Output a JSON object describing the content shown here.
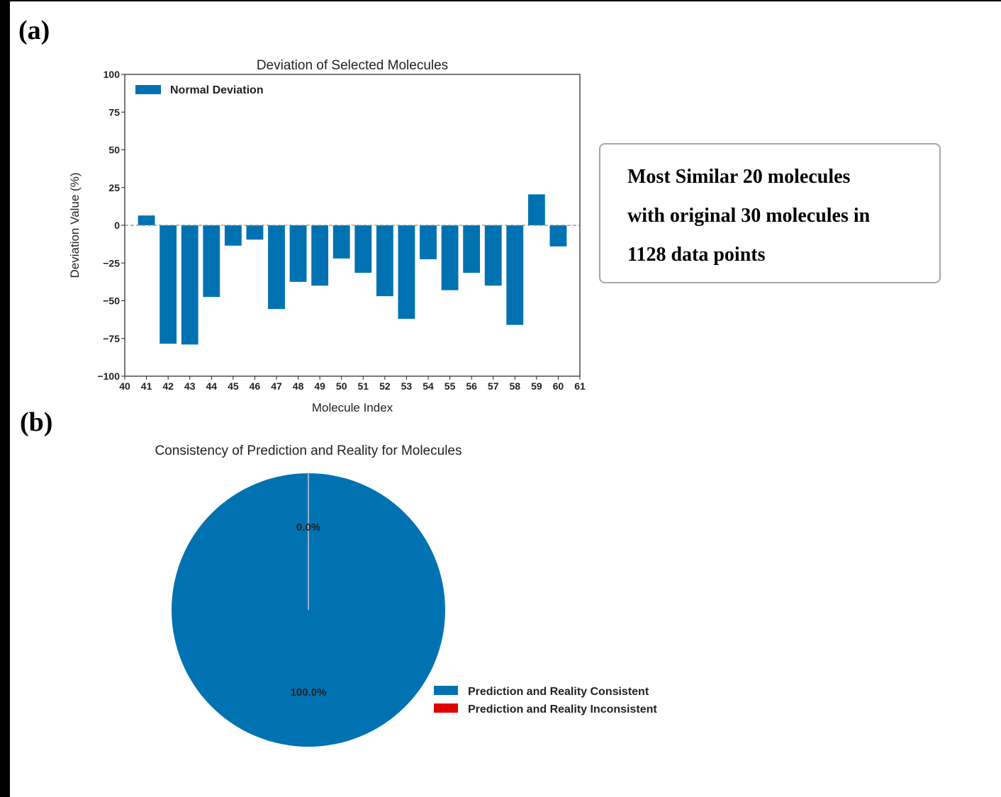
{
  "panels": {
    "a_label": "(a)",
    "b_label": "(b)"
  },
  "note": {
    "lines": [
      "Most Similar 20 molecules",
      "with original 30 molecules in",
      "1128 data points"
    ]
  },
  "chart_data": [
    {
      "type": "bar",
      "title": "Deviation of Selected Molecules",
      "xlabel": "Molecule Index",
      "ylabel": "Deviation Value (%)",
      "xlim": [
        40,
        61
      ],
      "ylim": [
        -100,
        100
      ],
      "xticks": [
        40,
        41,
        42,
        43,
        44,
        45,
        46,
        47,
        48,
        49,
        50,
        51,
        52,
        53,
        54,
        55,
        56,
        57,
        58,
        59,
        60,
        61
      ],
      "yticks": [
        100,
        75,
        50,
        25,
        0,
        -25,
        -50,
        -75,
        -100
      ],
      "ytick_labels": [
        "100",
        "75",
        "50",
        "25",
        "0",
        "−25",
        "−50",
        "−75",
        "−100"
      ],
      "categories": [
        41,
        42,
        43,
        44,
        45,
        46,
        47,
        48,
        49,
        50,
        51,
        52,
        53,
        54,
        55,
        56,
        57,
        58,
        59,
        60
      ],
      "series": [
        {
          "name": "Normal Deviation",
          "color": "#0072b2",
          "values": [
            6.5,
            -78.5,
            -79,
            -47.5,
            -13.5,
            -9.5,
            -55.5,
            -37.5,
            -40,
            -22,
            -31.5,
            -47,
            -62,
            -22.5,
            -43,
            -31.5,
            -40,
            -66,
            20.5,
            -14
          ]
        }
      ],
      "zero_line": "dashed",
      "legend": "top-left",
      "grid": false
    },
    {
      "type": "pie",
      "title": "Consistency of Prediction and Reality for Molecules",
      "slices": [
        {
          "label": "Prediction and Reality Consistent",
          "value": 100.0,
          "pct_label": "100.0%",
          "color": "#0072b2"
        },
        {
          "label": "Prediction and Reality Inconsistent",
          "value": 0.0,
          "pct_label": "0.0%",
          "color": "#e00000"
        }
      ],
      "legend": "bottom-right"
    }
  ]
}
